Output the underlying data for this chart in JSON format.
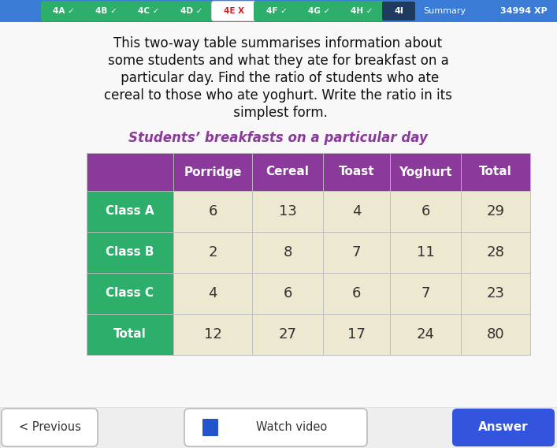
{
  "title_text": "Students’ breakfasts on a particular day",
  "col_headers": [
    "Porridge",
    "Cereal",
    "Toast",
    "Yoghurt",
    "Total"
  ],
  "row_headers": [
    "Class A",
    "Class B",
    "Class C",
    "Total"
  ],
  "table_data": [
    [
      6,
      13,
      4,
      6,
      29
    ],
    [
      2,
      8,
      7,
      11,
      28
    ],
    [
      4,
      6,
      6,
      7,
      23
    ],
    [
      12,
      27,
      17,
      24,
      80
    ]
  ],
  "header_bg_color": "#8B3A9B",
  "row_header_bg_color": "#2DAE6B",
  "cell_bg_color": "#EDE8D0",
  "cell_text_color": "#333333",
  "bg_color": "#f5f5f5",
  "question_text": "This two-way table summarises information about\nsome students and what they ate for breakfast on a\n particular day. Find the ratio of students who ate\ncereal to those who ate yoghurt. Write the ratio in its\n simplest form.",
  "nav_items": [
    "4A ✓",
    "4B ✓",
    "4C ✓",
    "4D ✓",
    "4E X",
    "4F ✓",
    "4G ✓",
    "4H ✓"
  ],
  "nav_colors": [
    "#2DAE6B",
    "#2DAE6B",
    "#2DAE6B",
    "#2DAE6B",
    "#ffffff",
    "#2DAE6B",
    "#2DAE6B",
    "#2DAE6B"
  ],
  "nav_text_colors": [
    "#ffffff",
    "#ffffff",
    "#ffffff",
    "#ffffff",
    "#cc2222",
    "#ffffff",
    "#ffffff",
    "#ffffff"
  ],
  "xp_text": "34994 XP",
  "lesson_id": "4I",
  "summary_text": "Summary",
  "previous_text": "< Previous",
  "watch_video_text": "Watch video",
  "answer_text": "Answer",
  "title_color": "#8B3A9B",
  "nav_bar_color": "#3a7bd5"
}
